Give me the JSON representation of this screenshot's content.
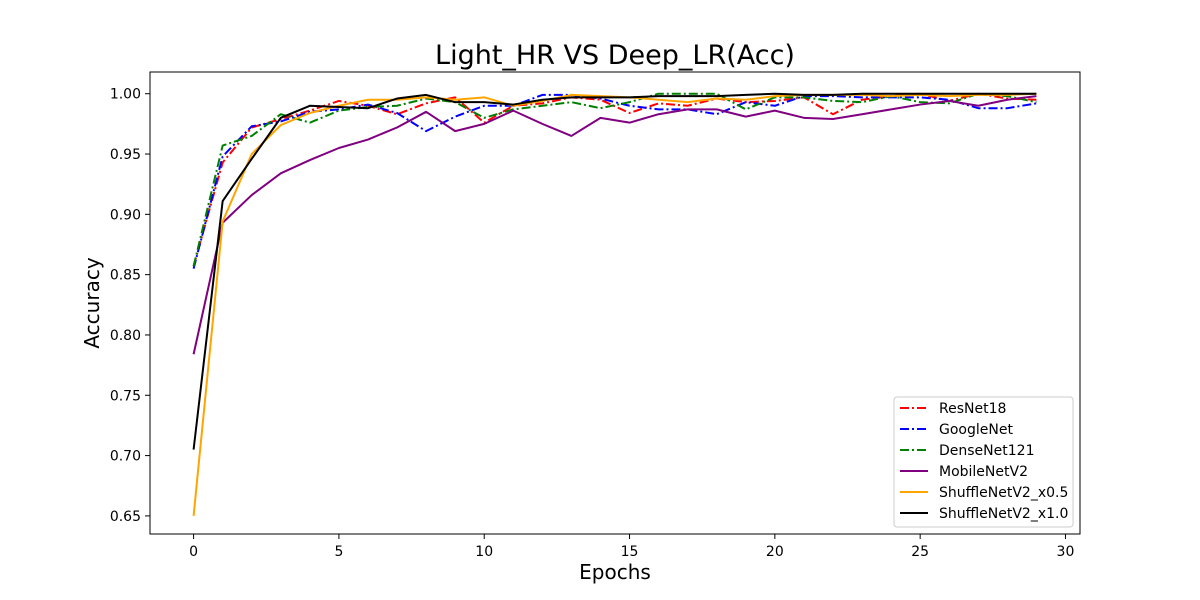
{
  "chart_data": {
    "type": "line",
    "title": "Light_HR VS Deep_LR(Acc)",
    "xlabel": "Epochs",
    "ylabel": "Accuracy",
    "xlim": [
      -1.5,
      30.5
    ],
    "ylim": [
      0.635,
      1.018
    ],
    "xticks": [
      0,
      5,
      10,
      15,
      20,
      25,
      30
    ],
    "xtick_labels": [
      "0",
      "5",
      "10",
      "15",
      "20",
      "25",
      "30"
    ],
    "yticks": [
      0.65,
      0.7,
      0.75,
      0.8,
      0.85,
      0.9,
      0.95,
      1.0
    ],
    "ytick_labels": [
      "0.65",
      "0.70",
      "0.75",
      "0.80",
      "0.85",
      "0.90",
      "0.95",
      "1.00"
    ],
    "grid": false,
    "legend_position": "lower-right",
    "x": [
      0,
      1,
      2,
      3,
      4,
      5,
      6,
      7,
      8,
      9,
      10,
      11,
      12,
      13,
      14,
      15,
      16,
      17,
      18,
      19,
      20,
      21,
      22,
      23,
      24,
      25,
      26,
      27,
      28,
      29
    ],
    "series": [
      {
        "name": "ResNet18",
        "color": "#ff0000",
        "style": "dashdot",
        "values": [
          0.857,
          0.943,
          0.972,
          0.979,
          0.986,
          0.994,
          0.99,
          0.983,
          0.992,
          0.997,
          0.976,
          0.99,
          0.992,
          0.997,
          0.995,
          0.984,
          0.992,
          0.99,
          0.996,
          0.993,
          0.994,
          0.997,
          0.983,
          0.995,
          0.998,
          1.0,
          0.994,
          1.0,
          0.996,
          0.995
        ]
      },
      {
        "name": "GoogleNet",
        "color": "#0000ff",
        "style": "dashdot",
        "values": [
          0.855,
          0.948,
          0.973,
          0.977,
          0.985,
          0.987,
          0.991,
          0.984,
          0.969,
          0.981,
          0.99,
          0.99,
          0.999,
          0.999,
          0.996,
          0.99,
          0.987,
          0.987,
          0.983,
          0.993,
          0.99,
          0.998,
          0.998,
          0.997,
          0.997,
          0.997,
          0.995,
          0.988,
          0.988,
          0.992
        ]
      },
      {
        "name": "DenseNet121",
        "color": "#008000",
        "style": "dashdot",
        "values": [
          0.857,
          0.957,
          0.965,
          0.983,
          0.976,
          0.986,
          0.989,
          0.99,
          0.996,
          0.993,
          0.98,
          0.987,
          0.99,
          0.993,
          0.988,
          0.993,
          1.0,
          1.0,
          1.0,
          0.987,
          0.997,
          0.997,
          0.994,
          0.993,
          0.998,
          0.993,
          0.992,
          1.0,
          0.998,
          0.993
        ]
      },
      {
        "name": "MobileNetV2",
        "color": "#800080",
        "style": "solid",
        "values": [
          0.784,
          0.893,
          0.916,
          0.934,
          0.945,
          0.955,
          0.962,
          0.972,
          0.985,
          0.969,
          0.975,
          0.986,
          0.975,
          0.965,
          0.98,
          0.976,
          0.983,
          0.987,
          0.987,
          0.981,
          0.986,
          0.98,
          0.979,
          0.983,
          0.987,
          0.991,
          0.994,
          0.99,
          0.995,
          0.998
        ]
      },
      {
        "name": "ShuffleNetV2_x0.5",
        "color": "#ffa500",
        "style": "solid",
        "values": [
          0.65,
          0.894,
          0.95,
          0.974,
          0.984,
          0.99,
          0.995,
          0.995,
          0.997,
          0.995,
          0.997,
          0.99,
          0.994,
          0.999,
          0.998,
          0.997,
          0.995,
          0.993,
          0.996,
          0.995,
          0.998,
          0.999,
          0.999,
          0.999,
          0.998,
          0.999,
          0.998,
          0.999,
          0.999,
          1.0
        ]
      },
      {
        "name": "ShuffleNetV2_x1.0",
        "color": "#000000",
        "style": "solid",
        "values": [
          0.705,
          0.911,
          0.946,
          0.98,
          0.99,
          0.989,
          0.988,
          0.996,
          0.999,
          0.993,
          0.993,
          0.991,
          0.995,
          0.997,
          0.997,
          0.997,
          0.998,
          0.998,
          0.998,
          0.999,
          1.0,
          0.999,
          0.999,
          1.0,
          1.0,
          1.0,
          1.0,
          1.0,
          1.0,
          1.0
        ]
      }
    ]
  }
}
